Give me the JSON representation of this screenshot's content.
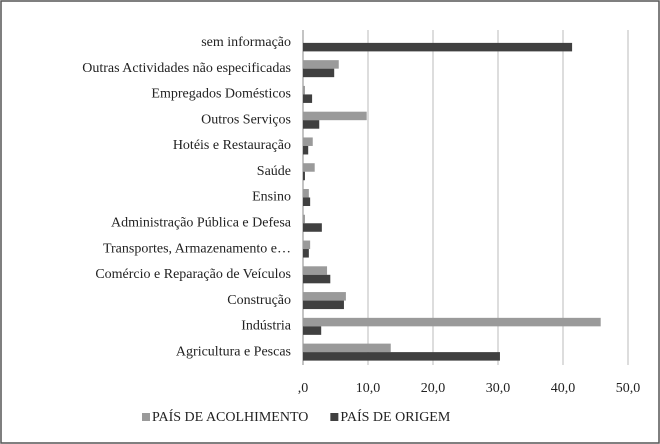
{
  "chart_data": {
    "type": "bar",
    "orientation": "horizontal",
    "categories": [
      "sem informação",
      "Outras Actividades não especificadas",
      "Empregados Domésticos",
      "Outros Serviços",
      "Hotéis e Restauração",
      "Saúde",
      "Ensino",
      "Administração Pública e Defesa",
      "Transportes, Armazenamento e…",
      "Comércio e Reparação de Veículos",
      "Construção",
      "Indústria",
      "Agricultura e Pescas"
    ],
    "series": [
      {
        "name": "PAÍS DE ACOLHIMENTO",
        "color": "#9a9a9a",
        "values": [
          0,
          5.5,
          0.3,
          9.8,
          1.5,
          1.8,
          0.9,
          0.3,
          1.1,
          3.7,
          6.6,
          45.8,
          13.5
        ]
      },
      {
        "name": "PAÍS DE ORIGEM",
        "color": "#404040",
        "values": [
          41.4,
          4.8,
          1.4,
          2.5,
          0.8,
          0.3,
          1.1,
          2.9,
          0.9,
          4.2,
          6.3,
          2.8,
          30.3
        ]
      }
    ],
    "xlim": [
      0,
      50
    ],
    "xticks": [
      {
        "value": 0,
        "label": ",0"
      },
      {
        "value": 10,
        "label": "10,0"
      },
      {
        "value": 20,
        "label": "20,0"
      },
      {
        "value": 30,
        "label": "30,0"
      },
      {
        "value": 40,
        "label": "40,0"
      },
      {
        "value": 50,
        "label": "50,0"
      }
    ],
    "grid": true,
    "legend": "bottom"
  }
}
